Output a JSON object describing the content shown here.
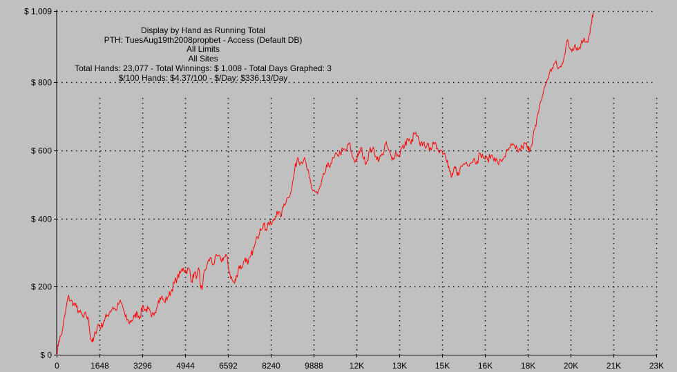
{
  "chart_data": {
    "type": "line",
    "title": "Display by Hand as Running Total",
    "subtitle_lines": [
      "PTH: TuesAug19th2008propbet - Access (Default DB)",
      "All Limits",
      "All Sites",
      "Total Hands: 23,077 - Total Winnings: $ 1,008 - Total Days Graphed: 3",
      "$/100 Hands: $4.37/100 - $/Day: $336.13/Day"
    ],
    "xlim": [
      0,
      23077
    ],
    "ylim": [
      0,
      1009
    ],
    "x_ticks": [
      {
        "value": 0,
        "label": "0"
      },
      {
        "value": 1648,
        "label": "1648"
      },
      {
        "value": 3296,
        "label": "3296"
      },
      {
        "value": 4944,
        "label": "4944"
      },
      {
        "value": 6592,
        "label": "6592"
      },
      {
        "value": 8240,
        "label": "8240"
      },
      {
        "value": 9888,
        "label": "9888"
      },
      {
        "value": 11536,
        "label": "12K"
      },
      {
        "value": 13184,
        "label": "13K"
      },
      {
        "value": 14832,
        "label": "15K"
      },
      {
        "value": 16480,
        "label": "16K"
      },
      {
        "value": 18128,
        "label": "18K"
      },
      {
        "value": 19776,
        "label": "20K"
      },
      {
        "value": 21424,
        "label": "21K"
      },
      {
        "value": 23072,
        "label": "23K"
      }
    ],
    "y_ticks": [
      {
        "value": 0,
        "label": "$ 0"
      },
      {
        "value": 200,
        "label": "$ 200"
      },
      {
        "value": 400,
        "label": "$ 400"
      },
      {
        "value": 600,
        "label": "$ 600"
      },
      {
        "value": 800,
        "label": "$ 800"
      },
      {
        "value": 1009,
        "label": "$ 1,009"
      }
    ],
    "grid": true,
    "colors": {
      "background": "#c0c0c0",
      "line": "#ff0000",
      "grid": "#000000",
      "axis": "#000000"
    },
    "series": [
      {
        "values": [
          [
            0,
            0
          ],
          [
            80,
            40
          ],
          [
            190,
            60
          ],
          [
            330,
            120
          ],
          [
            440,
            170
          ],
          [
            540,
            158
          ],
          [
            650,
            150
          ],
          [
            760,
            140
          ],
          [
            880,
            125
          ],
          [
            1020,
            110
          ],
          [
            1130,
            118
          ],
          [
            1230,
            100
          ],
          [
            1320,
            45
          ],
          [
            1400,
            38
          ],
          [
            1490,
            65
          ],
          [
            1600,
            90
          ],
          [
            1710,
            80
          ],
          [
            1820,
            100
          ],
          [
            1920,
            112
          ],
          [
            2060,
            128
          ],
          [
            2170,
            140
          ],
          [
            2280,
            130
          ],
          [
            2420,
            155
          ],
          [
            2530,
            145
          ],
          [
            2640,
            112
          ],
          [
            2770,
            95
          ],
          [
            2880,
            100
          ],
          [
            3000,
            112
          ],
          [
            3110,
            122
          ],
          [
            3210,
            110
          ],
          [
            3310,
            145
          ],
          [
            3420,
            130
          ],
          [
            3520,
            135
          ],
          [
            3650,
            110
          ],
          [
            3780,
            125
          ],
          [
            3920,
            160
          ],
          [
            4030,
            170
          ],
          [
            4140,
            155
          ],
          [
            4280,
            170
          ],
          [
            4400,
            185
          ],
          [
            4520,
            210
          ],
          [
            4640,
            225
          ],
          [
            4760,
            240
          ],
          [
            4870,
            255
          ],
          [
            4980,
            245
          ],
          [
            5100,
            252
          ],
          [
            5200,
            215
          ],
          [
            5290,
            240
          ],
          [
            5400,
            230
          ],
          [
            5480,
            250
          ],
          [
            5530,
            205
          ],
          [
            5590,
            190
          ],
          [
            5650,
            232
          ],
          [
            5780,
            262
          ],
          [
            5910,
            285
          ],
          [
            6030,
            265
          ],
          [
            6180,
            290
          ],
          [
            6320,
            278
          ],
          [
            6430,
            285
          ],
          [
            6540,
            290
          ],
          [
            6640,
            245
          ],
          [
            6760,
            218
          ],
          [
            6850,
            210
          ],
          [
            6930,
            232
          ],
          [
            7020,
            260
          ],
          [
            7130,
            256
          ],
          [
            7260,
            285
          ],
          [
            7360,
            265
          ],
          [
            7470,
            290
          ],
          [
            7600,
            315
          ],
          [
            7730,
            345
          ],
          [
            7830,
            370
          ],
          [
            7960,
            385
          ],
          [
            8050,
            368
          ],
          [
            8150,
            388
          ],
          [
            8250,
            382
          ],
          [
            8370,
            395
          ],
          [
            8480,
            422
          ],
          [
            8620,
            405
          ],
          [
            8750,
            442
          ],
          [
            8900,
            462
          ],
          [
            9050,
            488
          ],
          [
            9160,
            542
          ],
          [
            9280,
            580
          ],
          [
            9390,
            565
          ],
          [
            9520,
            575
          ],
          [
            9620,
            552
          ],
          [
            9720,
            520
          ],
          [
            9820,
            488
          ],
          [
            9920,
            480
          ],
          [
            10040,
            472
          ],
          [
            10170,
            496
          ],
          [
            10300,
            530
          ],
          [
            10410,
            552
          ],
          [
            10550,
            562
          ],
          [
            10680,
            578
          ],
          [
            10800,
            588
          ],
          [
            10920,
            592
          ],
          [
            11030,
            602
          ],
          [
            11140,
            598
          ],
          [
            11260,
            622
          ],
          [
            11380,
            582
          ],
          [
            11500,
            568
          ],
          [
            11610,
            585
          ],
          [
            11720,
            608
          ],
          [
            11820,
            575
          ],
          [
            11930,
            565
          ],
          [
            12040,
            598
          ],
          [
            12160,
            605
          ],
          [
            12290,
            582
          ],
          [
            12420,
            575
          ],
          [
            12550,
            588
          ],
          [
            12660,
            620
          ],
          [
            12780,
            600
          ],
          [
            12910,
            570
          ],
          [
            13040,
            595
          ],
          [
            13160,
            582
          ],
          [
            13270,
            606
          ],
          [
            13390,
            612
          ],
          [
            13510,
            635
          ],
          [
            13640,
            618
          ],
          [
            13760,
            650
          ],
          [
            13880,
            642
          ],
          [
            13990,
            612
          ],
          [
            14110,
            622
          ],
          [
            14240,
            612
          ],
          [
            14380,
            608
          ],
          [
            14520,
            618
          ],
          [
            14660,
            606
          ],
          [
            14800,
            600
          ],
          [
            14930,
            592
          ],
          [
            15040,
            570
          ],
          [
            15110,
            545
          ],
          [
            15190,
            520
          ],
          [
            15260,
            535
          ],
          [
            15340,
            548
          ],
          [
            15420,
            525
          ],
          [
            15520,
            545
          ],
          [
            15640,
            558
          ],
          [
            15770,
            565
          ],
          [
            15910,
            562
          ],
          [
            16050,
            575
          ],
          [
            16180,
            568
          ],
          [
            16310,
            590
          ],
          [
            16460,
            578
          ],
          [
            16590,
            572
          ],
          [
            16720,
            585
          ],
          [
            16860,
            578
          ],
          [
            16980,
            562
          ],
          [
            17110,
            568
          ],
          [
            17230,
            582
          ],
          [
            17380,
            600
          ],
          [
            17520,
            615
          ],
          [
            17660,
            605
          ],
          [
            17790,
            598
          ],
          [
            17920,
            610
          ],
          [
            18060,
            620
          ],
          [
            18150,
            600
          ],
          [
            18250,
            610
          ],
          [
            18350,
            648
          ],
          [
            18450,
            672
          ],
          [
            18580,
            732
          ],
          [
            18700,
            760
          ],
          [
            18820,
            795
          ],
          [
            18950,
            822
          ],
          [
            19070,
            842
          ],
          [
            19190,
            858
          ],
          [
            19310,
            840
          ],
          [
            19420,
            845
          ],
          [
            19540,
            880
          ],
          [
            19640,
            922
          ],
          [
            19750,
            900
          ],
          [
            19850,
            898
          ],
          [
            19950,
            910
          ],
          [
            20060,
            895
          ],
          [
            20180,
            912
          ],
          [
            20300,
            930
          ],
          [
            20420,
            918
          ],
          [
            20520,
            942
          ],
          [
            20600,
            980
          ],
          [
            20650,
            1005
          ]
        ]
      }
    ]
  }
}
